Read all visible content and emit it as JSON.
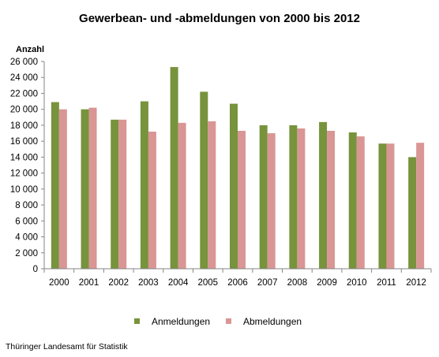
{
  "chart_data": {
    "type": "bar",
    "title": "Gewerbean- und -abmeldungen von 2000 bis 2012",
    "ylabel": "Anzahl",
    "xlabel": "",
    "categories": [
      "2000",
      "2001",
      "2002",
      "2003",
      "2004",
      "2005",
      "2006",
      "2007",
      "2008",
      "2009",
      "2010",
      "2011",
      "2012"
    ],
    "series": [
      {
        "name": "Anmeldungen",
        "color": "#77933c",
        "values": [
          20900,
          20000,
          18700,
          21000,
          25300,
          22200,
          20700,
          18000,
          18000,
          18400,
          17100,
          15700,
          14000
        ]
      },
      {
        "name": "Abmeldungen",
        "color": "#d99694",
        "values": [
          20000,
          20200,
          18700,
          17200,
          18300,
          18500,
          17300,
          17000,
          17600,
          17300,
          16600,
          15700,
          15800
        ]
      }
    ],
    "ylim": [
      0,
      26000
    ],
    "yticks": [
      0,
      2000,
      4000,
      6000,
      8000,
      10000,
      12000,
      14000,
      16000,
      18000,
      20000,
      22000,
      24000,
      26000
    ],
    "ytick_labels": [
      "0",
      "2 000",
      "4 000",
      "6 000",
      "8 000",
      "10 000",
      "12 000",
      "14 000",
      "16 000",
      "18 000",
      "20 000",
      "22 000",
      "24 000",
      "26 000"
    ],
    "grid": false,
    "legend_position": "bottom"
  },
  "source": "Thüringer Landesamt für Statistik"
}
